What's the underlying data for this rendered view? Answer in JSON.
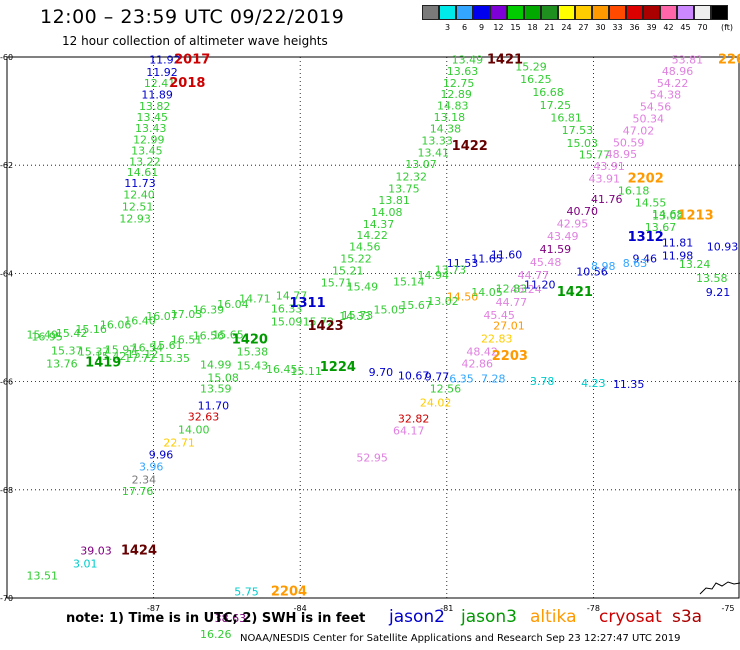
{
  "header": {
    "title": "12:00 – 23:59 UTC 09/22/2019",
    "subtitle": "12 hour collection of altimeter wave heights"
  },
  "colorbar": {
    "colors": [
      "#7a7a7a",
      "#00eaea",
      "#33a6ff",
      "#0000ee",
      "#7d00d8",
      "#00cc00",
      "#00a800",
      "#1f8f1f",
      "#ffff00",
      "#ffcc00",
      "#ff9900",
      "#ff4a00",
      "#dd0000",
      "#aa0000",
      "#ff66aa",
      "#cc88ff",
      "#eeeeee",
      "#000000"
    ],
    "labels": [
      "3",
      "6",
      "9",
      "12",
      "15",
      "18",
      "21",
      "24",
      "27",
      "30",
      "33",
      "36",
      "39",
      "42",
      "45",
      "70"
    ],
    "unit": "(ft)"
  },
  "axes": {
    "x_labels": [
      "-87",
      "-84",
      "-81",
      "-78",
      "-75"
    ],
    "y_labels": [
      "-60",
      "-62",
      "-64",
      "-66",
      "-68",
      "-70"
    ],
    "left_labels": [
      "-60",
      "-62",
      "-64",
      "-66",
      "-68",
      "-70"
    ]
  },
  "colors": {
    "jason2": "#0000cc",
    "jason3": "#00a800",
    "altika": "#ff9900",
    "cryosat": "#cc0000",
    "s3a": "#aa0000",
    "lightgreen": "#33cc33",
    "pink": "#e080e0",
    "cyan": "#00cccc",
    "purple": "#800080"
  },
  "passes": [
    {
      "label": "2017",
      "color": "#cc0000",
      "lon": -86.58,
      "lat": -60.12
    },
    {
      "label": "2018",
      "color": "#cc0000",
      "lon": -86.68,
      "lat": -60.55
    },
    {
      "label": "1421",
      "color": "#660000",
      "lon": -80.18,
      "lat": -60.12
    },
    {
      "label": "220",
      "color": "#ff9900",
      "lon": -75.45,
      "lat": -60.12
    },
    {
      "label": "1422",
      "color": "#660000",
      "lon": -80.9,
      "lat": -61.72
    },
    {
      "label": "2202",
      "color": "#ff9900",
      "lon": -77.3,
      "lat": -62.32
    },
    {
      "label": "1213",
      "color": "#ff9900",
      "lon": -76.28,
      "lat": -63.0
    },
    {
      "label": "1312",
      "color": "#0000cc",
      "lon": -77.3,
      "lat": -63.4
    },
    {
      "label": "1421",
      "color": "#009900",
      "lon": -78.75,
      "lat": -64.42
    },
    {
      "label": "1311",
      "color": "#0000cc",
      "lon": -84.22,
      "lat": -64.62
    },
    {
      "label": "1423",
      "color": "#660000",
      "lon": -83.85,
      "lat": -65.05
    },
    {
      "label": "1420",
      "color": "#009900",
      "lon": -85.4,
      "lat": -65.3
    },
    {
      "label": "1419",
      "color": "#009900",
      "lon": -88.4,
      "lat": -65.72
    },
    {
      "label": "1224",
      "color": "#009900",
      "lon": -83.6,
      "lat": -65.8
    },
    {
      "label": "2203",
      "color": "#ff9900",
      "lon": -80.08,
      "lat": -65.6
    },
    {
      "label": "1424",
      "color": "#660000",
      "lon": -87.67,
      "lat": -69.2
    },
    {
      "label": "2204",
      "color": "#ff9900",
      "lon": -84.6,
      "lat": -69.95
    }
  ],
  "points": [
    {
      "t": "11.92",
      "c": "#0000cc",
      "lon": -87.09,
      "lat": -60.12
    },
    {
      "t": "11.92",
      "c": "#0000cc",
      "lon": -87.15,
      "lat": -60.35
    },
    {
      "t": "12.41",
      "c": "#33cc33",
      "lon": -87.2,
      "lat": -60.55
    },
    {
      "t": "11.89",
      "c": "#0000cc",
      "lon": -87.25,
      "lat": -60.77
    },
    {
      "t": "13.82",
      "c": "#33cc33",
      "lon": -87.3,
      "lat": -60.98
    },
    {
      "t": "13.45",
      "c": "#33cc33",
      "lon": -87.35,
      "lat": -61.18
    },
    {
      "t": "13.43",
      "c": "#33cc33",
      "lon": -87.38,
      "lat": -61.39
    },
    {
      "t": "12.99",
      "c": "#33cc33",
      "lon": -87.42,
      "lat": -61.6
    },
    {
      "t": "13.45",
      "c": "#33cc33",
      "lon": -87.46,
      "lat": -61.8
    },
    {
      "t": "13.22",
      "c": "#33cc33",
      "lon": -87.5,
      "lat": -62.01
    },
    {
      "t": "14.61",
      "c": "#33cc33",
      "lon": -87.55,
      "lat": -62.2
    },
    {
      "t": "11.73",
      "c": "#0000cc",
      "lon": -87.6,
      "lat": -62.4
    },
    {
      "t": "12.40",
      "c": "#33cc33",
      "lon": -87.62,
      "lat": -62.62
    },
    {
      "t": "12.51",
      "c": "#33cc33",
      "lon": -87.65,
      "lat": -62.84
    },
    {
      "t": "12.93",
      "c": "#33cc33",
      "lon": -87.7,
      "lat": -63.06
    },
    {
      "t": "13.49",
      "c": "#33cc33",
      "lon": -80.9,
      "lat": -60.12
    },
    {
      "t": "13.63",
      "c": "#33cc33",
      "lon": -81.0,
      "lat": -60.33
    },
    {
      "t": "12.75",
      "c": "#33cc33",
      "lon": -81.08,
      "lat": -60.55
    },
    {
      "t": "12.89",
      "c": "#33cc33",
      "lon": -81.13,
      "lat": -60.76
    },
    {
      "t": "14.83",
      "c": "#33cc33",
      "lon": -81.2,
      "lat": -60.97
    },
    {
      "t": "13.18",
      "c": "#33cc33",
      "lon": -81.27,
      "lat": -61.18
    },
    {
      "t": "14.38",
      "c": "#33cc33",
      "lon": -81.35,
      "lat": -61.4
    },
    {
      "t": "13.33",
      "c": "#33cc33",
      "lon": -81.52,
      "lat": -61.62
    },
    {
      "t": "13.41",
      "c": "#33cc33",
      "lon": -81.6,
      "lat": -61.84
    },
    {
      "t": "13.07",
      "c": "#33cc33",
      "lon": -81.85,
      "lat": -62.05
    },
    {
      "t": "12.32",
      "c": "#33cc33",
      "lon": -82.05,
      "lat": -62.28
    },
    {
      "t": "13.75",
      "c": "#33cc33",
      "lon": -82.2,
      "lat": -62.5
    },
    {
      "t": "13.81",
      "c": "#33cc33",
      "lon": -82.4,
      "lat": -62.72
    },
    {
      "t": "14.08",
      "c": "#33cc33",
      "lon": -82.55,
      "lat": -62.94
    },
    {
      "t": "14.37",
      "c": "#33cc33",
      "lon": -82.72,
      "lat": -63.16
    },
    {
      "t": "14.22",
      "c": "#33cc33",
      "lon": -82.85,
      "lat": -63.36
    },
    {
      "t": "14.56",
      "c": "#33cc33",
      "lon": -83.0,
      "lat": -63.58
    },
    {
      "t": "15.22",
      "c": "#33cc33",
      "lon": -83.18,
      "lat": -63.8
    },
    {
      "t": "15.21",
      "c": "#33cc33",
      "lon": -83.35,
      "lat": -64.02
    },
    {
      "t": "15.71",
      "c": "#33cc33",
      "lon": -83.58,
      "lat": -64.24
    },
    {
      "t": "15.29",
      "c": "#33cc33",
      "lon": -79.6,
      "lat": -60.25
    },
    {
      "t": "16.25",
      "c": "#33cc33",
      "lon": -79.5,
      "lat": -60.48
    },
    {
      "t": "16.68",
      "c": "#33cc33",
      "lon": -79.25,
      "lat": -60.72
    },
    {
      "t": "17.25",
      "c": "#33cc33",
      "lon": -79.1,
      "lat": -60.96
    },
    {
      "t": "16.81",
      "c": "#33cc33",
      "lon": -78.88,
      "lat": -61.19
    },
    {
      "t": "17.53",
      "c": "#33cc33",
      "lon": -78.65,
      "lat": -61.42
    },
    {
      "t": "15.03",
      "c": "#33cc33",
      "lon": -78.55,
      "lat": -61.66
    },
    {
      "t": "15.77",
      "c": "#33cc33",
      "lon": -78.3,
      "lat": -61.88
    },
    {
      "t": "16.18",
      "c": "#33cc33",
      "lon": -77.5,
      "lat": -62.54
    },
    {
      "t": "14.55",
      "c": "#33cc33",
      "lon": -77.15,
      "lat": -62.76
    },
    {
      "t": "14.68",
      "c": "#33cc33",
      "lon": -76.8,
      "lat": -62.98
    },
    {
      "t": "53.81",
      "c": "#e080e0",
      "lon": -76.4,
      "lat": -60.12
    },
    {
      "t": "48.96",
      "c": "#e080e0",
      "lon": -76.6,
      "lat": -60.33
    },
    {
      "t": "54.22",
      "c": "#e080e0",
      "lon": -76.7,
      "lat": -60.55
    },
    {
      "t": "54.38",
      "c": "#e080e0",
      "lon": -76.85,
      "lat": -60.77
    },
    {
      "t": "54.56",
      "c": "#e080e0",
      "lon": -77.05,
      "lat": -60.99
    },
    {
      "t": "50.34",
      "c": "#e080e0",
      "lon": -77.2,
      "lat": -61.21
    },
    {
      "t": "47.02",
      "c": "#e080e0",
      "lon": -77.4,
      "lat": -61.43
    },
    {
      "t": "50.59",
      "c": "#e080e0",
      "lon": -77.6,
      "lat": -61.65
    },
    {
      "t": "48.95",
      "c": "#e080e0",
      "lon": -77.75,
      "lat": -61.87
    },
    {
      "t": "43.91",
      "c": "#e080e0",
      "lon": -78.0,
      "lat": -62.09
    },
    {
      "t": "43.91",
      "c": "#e080e0",
      "lon": -78.1,
      "lat": -62.32
    },
    {
      "t": "41.76",
      "c": "#800080",
      "lon": -78.05,
      "lat": -62.7
    },
    {
      "t": "40.70",
      "c": "#800080",
      "lon": -78.55,
      "lat": -62.92
    },
    {
      "t": "42.95",
      "c": "#e080e0",
      "lon": -78.75,
      "lat": -63.15
    },
    {
      "t": "43.49",
      "c": "#e080e0",
      "lon": -78.95,
      "lat": -63.38
    },
    {
      "t": "41.59",
      "c": "#800080",
      "lon": -79.1,
      "lat": -63.62
    },
    {
      "t": "45.48",
      "c": "#e080e0",
      "lon": -79.3,
      "lat": -63.86
    },
    {
      "t": "44.77",
      "c": "#e080e0",
      "lon": -79.55,
      "lat": -64.1
    },
    {
      "t": "46.24",
      "c": "#e080e0",
      "lon": -79.7,
      "lat": -64.36
    },
    {
      "t": "44.77",
      "c": "#e080e0",
      "lon": -80.0,
      "lat": -64.6
    },
    {
      "t": "45.45",
      "c": "#e080e0",
      "lon": -80.25,
      "lat": -64.84
    },
    {
      "t": "11.53",
      "c": "#0000cc",
      "lon": -81.0,
      "lat": -63.88
    },
    {
      "t": "11.65",
      "c": "#0000cc",
      "lon": -80.5,
      "lat": -63.8
    },
    {
      "t": "11.60",
      "c": "#0000cc",
      "lon": -80.1,
      "lat": -63.72
    },
    {
      "t": "11.20",
      "c": "#0000cc",
      "lon": -79.42,
      "lat": -64.28
    },
    {
      "t": "10.56",
      "c": "#0000cc",
      "lon": -78.35,
      "lat": -64.04
    },
    {
      "t": "9.46",
      "c": "#0000cc",
      "lon": -77.2,
      "lat": -63.8
    },
    {
      "t": "11.81",
      "c": "#0000cc",
      "lon": -76.6,
      "lat": -63.5
    },
    {
      "t": "11.98",
      "c": "#0000cc",
      "lon": -76.6,
      "lat": -63.74
    },
    {
      "t": "10.93",
      "c": "#0000cc",
      "lon": -75.68,
      "lat": -63.58
    },
    {
      "t": "9.21",
      "c": "#0000cc",
      "lon": -75.7,
      "lat": -64.42
    },
    {
      "t": "8.98",
      "c": "#33a6ff",
      "lon": -78.05,
      "lat": -63.94
    },
    {
      "t": "8.63",
      "c": "#33a6ff",
      "lon": -77.4,
      "lat": -63.88
    },
    {
      "t": "13.24",
      "c": "#33cc33",
      "lon": -76.25,
      "lat": -63.9
    },
    {
      "t": "13.58",
      "c": "#33cc33",
      "lon": -75.9,
      "lat": -64.16
    },
    {
      "t": "13.67",
      "c": "#33cc33",
      "lon": -76.95,
      "lat": -63.22
    },
    {
      "t": "13.02",
      "c": "#33cc33",
      "lon": -76.8,
      "lat": -63.0
    },
    {
      "t": "15.14",
      "c": "#33cc33",
      "lon": -82.1,
      "lat": -64.22
    },
    {
      "t": "14.94",
      "c": "#33cc33",
      "lon": -81.6,
      "lat": -64.1
    },
    {
      "t": "13.73",
      "c": "#33cc33",
      "lon": -81.25,
      "lat": -64.0
    },
    {
      "t": "15.49",
      "c": "#33cc33",
      "lon": -83.05,
      "lat": -64.32
    },
    {
      "t": "14.50",
      "c": "#ff9900",
      "lon": -81.0,
      "lat": -64.5
    },
    {
      "t": "14.05",
      "c": "#33cc33",
      "lon": -80.5,
      "lat": -64.42
    },
    {
      "t": "12.83",
      "c": "#33cc33",
      "lon": -80.0,
      "lat": -64.35
    },
    {
      "t": "13.02",
      "c": "#33cc33",
      "lon": -81.4,
      "lat": -64.58
    },
    {
      "t": "15.67",
      "c": "#33cc33",
      "lon": -81.95,
      "lat": -64.66
    },
    {
      "t": "15.05",
      "c": "#33cc33",
      "lon": -82.5,
      "lat": -64.74
    },
    {
      "t": "15.73",
      "c": "#33cc33",
      "lon": -83.15,
      "lat": -64.84
    },
    {
      "t": "15.72",
      "c": "#33cc33",
      "lon": -83.95,
      "lat": -64.96
    },
    {
      "t": "14.71",
      "c": "#33cc33",
      "lon": -85.25,
      "lat": -64.54
    },
    {
      "t": "16.04",
      "c": "#33cc33",
      "lon": -85.7,
      "lat": -64.64
    },
    {
      "t": "16.39",
      "c": "#33cc33",
      "lon": -86.2,
      "lat": -64.74
    },
    {
      "t": "17.03",
      "c": "#33cc33",
      "lon": -86.65,
      "lat": -64.82
    },
    {
      "t": "16.07",
      "c": "#33cc33",
      "lon": -87.15,
      "lat": -64.86
    },
    {
      "t": "16.40",
      "c": "#33cc33",
      "lon": -87.6,
      "lat": -64.94
    },
    {
      "t": "16.06",
      "c": "#33cc33",
      "lon": -88.1,
      "lat": -65.02
    },
    {
      "t": "15.16",
      "c": "#33cc33",
      "lon": -88.6,
      "lat": -65.1
    },
    {
      "t": "15.42",
      "c": "#33cc33",
      "lon": -89.0,
      "lat": -65.18
    },
    {
      "t": "15.49",
      "c": "#33cc33",
      "lon": -89.6,
      "lat": -65.2
    },
    {
      "t": "16.51",
      "c": "#33cc33",
      "lon": -86.65,
      "lat": -65.3
    },
    {
      "t": "16.56",
      "c": "#33cc33",
      "lon": -86.2,
      "lat": -65.22
    },
    {
      "t": "15.65",
      "c": "#33cc33",
      "lon": -85.8,
      "lat": -65.2
    },
    {
      "t": "15.61",
      "c": "#33cc33",
      "lon": -87.05,
      "lat": -65.4
    },
    {
      "t": "16.54",
      "c": "#33cc33",
      "lon": -87.45,
      "lat": -65.44
    },
    {
      "t": "15.97",
      "c": "#33cc33",
      "lon": -88.0,
      "lat": -65.48
    },
    {
      "t": "15.37",
      "c": "#33cc33",
      "lon": -88.55,
      "lat": -65.52
    },
    {
      "t": "15.37",
      "c": "#33cc33",
      "lon": -89.1,
      "lat": -65.5
    },
    {
      "t": "16.95",
      "c": "#33cc33",
      "lon": -89.5,
      "lat": -65.24
    },
    {
      "t": "15.12",
      "c": "#33cc33",
      "lon": -87.55,
      "lat": -65.56
    },
    {
      "t": "15.42",
      "c": "#33cc33",
      "lon": -88.2,
      "lat": -65.6
    },
    {
      "t": "13.76",
      "c": "#33cc33",
      "lon": -89.2,
      "lat": -65.74
    },
    {
      "t": "17.72",
      "c": "#33cc33",
      "lon": -87.6,
      "lat": -65.64
    },
    {
      "t": "15.35",
      "c": "#33cc33",
      "lon": -86.9,
      "lat": -65.64
    },
    {
      "t": "14.99",
      "c": "#33cc33",
      "lon": -86.05,
      "lat": -65.76
    },
    {
      "t": "15.38",
      "c": "#33cc33",
      "lon": -85.3,
      "lat": -65.52
    },
    {
      "t": "15.43",
      "c": "#33cc33",
      "lon": -85.3,
      "lat": -65.78
    },
    {
      "t": "15.08",
      "c": "#33cc33",
      "lon": -85.9,
      "lat": -66.0
    },
    {
      "t": "16.45",
      "c": "#33cc33",
      "lon": -84.7,
      "lat": -65.84
    },
    {
      "t": "15.11",
      "c": "#33cc33",
      "lon": -84.2,
      "lat": -65.88
    },
    {
      "t": "14.77",
      "c": "#33cc33",
      "lon": -84.5,
      "lat": -64.48
    },
    {
      "t": "16.33",
      "c": "#33cc33",
      "lon": -84.6,
      "lat": -64.72
    },
    {
      "t": "15.09",
      "c": "#33cc33",
      "lon": -84.6,
      "lat": -64.96
    },
    {
      "t": "14.33",
      "c": "#33cc33",
      "lon": -83.2,
      "lat": -64.86
    },
    {
      "t": "13.59",
      "c": "#33cc33",
      "lon": -86.05,
      "lat": -66.2
    },
    {
      "t": "11.70",
      "c": "#0000cc",
      "lon": -86.1,
      "lat": -66.52
    },
    {
      "t": "32.63",
      "c": "#cc0000",
      "lon": -86.3,
      "lat": -66.72
    },
    {
      "t": "14.00",
      "c": "#33cc33",
      "lon": -86.5,
      "lat": -66.96
    },
    {
      "t": "22.71",
      "c": "#ffcc00",
      "lon": -86.8,
      "lat": -67.2
    },
    {
      "t": "9.96",
      "c": "#0000cc",
      "lon": -87.1,
      "lat": -67.42
    },
    {
      "t": "3.96",
      "c": "#33a6ff",
      "lon": -87.3,
      "lat": -67.64
    },
    {
      "t": "2.34",
      "c": "#7a7a7a",
      "lon": -87.45,
      "lat": -67.88
    },
    {
      "t": "17.76",
      "c": "#33cc33",
      "lon": -87.65,
      "lat": -68.1
    },
    {
      "t": "9.70",
      "c": "#0000cc",
      "lon": -82.6,
      "lat": -65.9
    },
    {
      "t": "10.67",
      "c": "#0000cc",
      "lon": -82.0,
      "lat": -65.96
    },
    {
      "t": "9.77",
      "c": "#0000cc",
      "lon": -81.45,
      "lat": -65.98
    },
    {
      "t": "6.35",
      "c": "#33a6ff",
      "lon": -80.95,
      "lat": -66.02
    },
    {
      "t": "7.28",
      "c": "#33a6ff",
      "lon": -80.3,
      "lat": -66.02
    },
    {
      "t": "3.78",
      "c": "#00cccc",
      "lon": -79.3,
      "lat": -66.06
    },
    {
      "t": "4.23",
      "c": "#00cccc",
      "lon": -78.25,
      "lat": -66.1
    },
    {
      "t": "11.35",
      "c": "#0000cc",
      "lon": -77.6,
      "lat": -66.12
    },
    {
      "t": "12.56",
      "c": "#33cc33",
      "lon": -81.35,
      "lat": -66.2
    },
    {
      "t": "24.02",
      "c": "#ffcc00",
      "lon": -81.55,
      "lat": -66.46
    },
    {
      "t": "32.82",
      "c": "#cc0000",
      "lon": -82.0,
      "lat": -66.76
    },
    {
      "t": "64.17",
      "c": "#e080e0",
      "lon": -82.1,
      "lat": -66.98
    },
    {
      "t": "52.95",
      "c": "#e080e0",
      "lon": -82.85,
      "lat": -67.48
    },
    {
      "t": "27.01",
      "c": "#ff9900",
      "lon": -80.05,
      "lat": -65.04
    },
    {
      "t": "22.83",
      "c": "#ffcc00",
      "lon": -80.3,
      "lat": -65.28
    },
    {
      "t": "48.42",
      "c": "#e080e0",
      "lon": -80.6,
      "lat": -65.52
    },
    {
      "t": "42.86",
      "c": "#e080e0",
      "lon": -80.7,
      "lat": -65.74
    },
    {
      "t": "39.03",
      "c": "#800080",
      "lon": -88.5,
      "lat": -69.2
    },
    {
      "t": "3.01",
      "c": "#00cccc",
      "lon": -88.65,
      "lat": -69.44
    },
    {
      "t": "13.51",
      "c": "#33cc33",
      "lon": -89.6,
      "lat": -69.66
    },
    {
      "t": "5.75",
      "c": "#00cccc",
      "lon": -85.35,
      "lat": -69.95
    },
    {
      "t": "38.63",
      "c": "#800080",
      "lon": -85.75,
      "lat": -70.44
    },
    {
      "t": "16.26",
      "c": "#33cc33",
      "lon": -86.05,
      "lat": -70.74
    }
  ],
  "footer": {
    "note": "note:  1) Time is in UTC;  2) SWH is in feet",
    "satellites": [
      {
        "name": "jason2",
        "color": "#0000cc"
      },
      {
        "name": "jason3",
        "color": "#009900"
      },
      {
        "name": "altika",
        "color": "#ff9900"
      },
      {
        "name": "cryosat",
        "color": "#cc0000"
      },
      {
        "name": "s3a",
        "color": "#aa0000"
      }
    ],
    "credit": "NOAA/NESDIS Center for Satellite Applications and Research    Sep 23 12:27:47 UTC 2019"
  }
}
